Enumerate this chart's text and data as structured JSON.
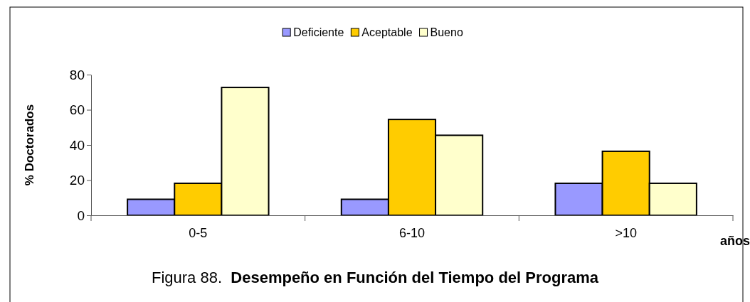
{
  "chart_data": {
    "type": "bar",
    "title": "Figura 88.  Desempeño en Función del Tiempo del Programa",
    "xlabel": "años",
    "ylabel": "% Doctorados",
    "categories": [
      "0-5",
      "6-10",
      ">10"
    ],
    "series": [
      {
        "name": "Deficiente",
        "color": "#9999ff",
        "values": [
          9.1,
          9.1,
          18.2
        ]
      },
      {
        "name": "Aceptable",
        "color": "#ffcc00",
        "values": [
          18.2,
          54.5,
          36.4
        ]
      },
      {
        "name": "Bueno",
        "color": "#ffffcc",
        "values": [
          72.7,
          45.5,
          18.2
        ]
      }
    ],
    "ylim": [
      0,
      80
    ],
    "yticks": [
      0,
      20,
      40,
      60,
      80
    ],
    "legend": "top",
    "grid": false
  }
}
